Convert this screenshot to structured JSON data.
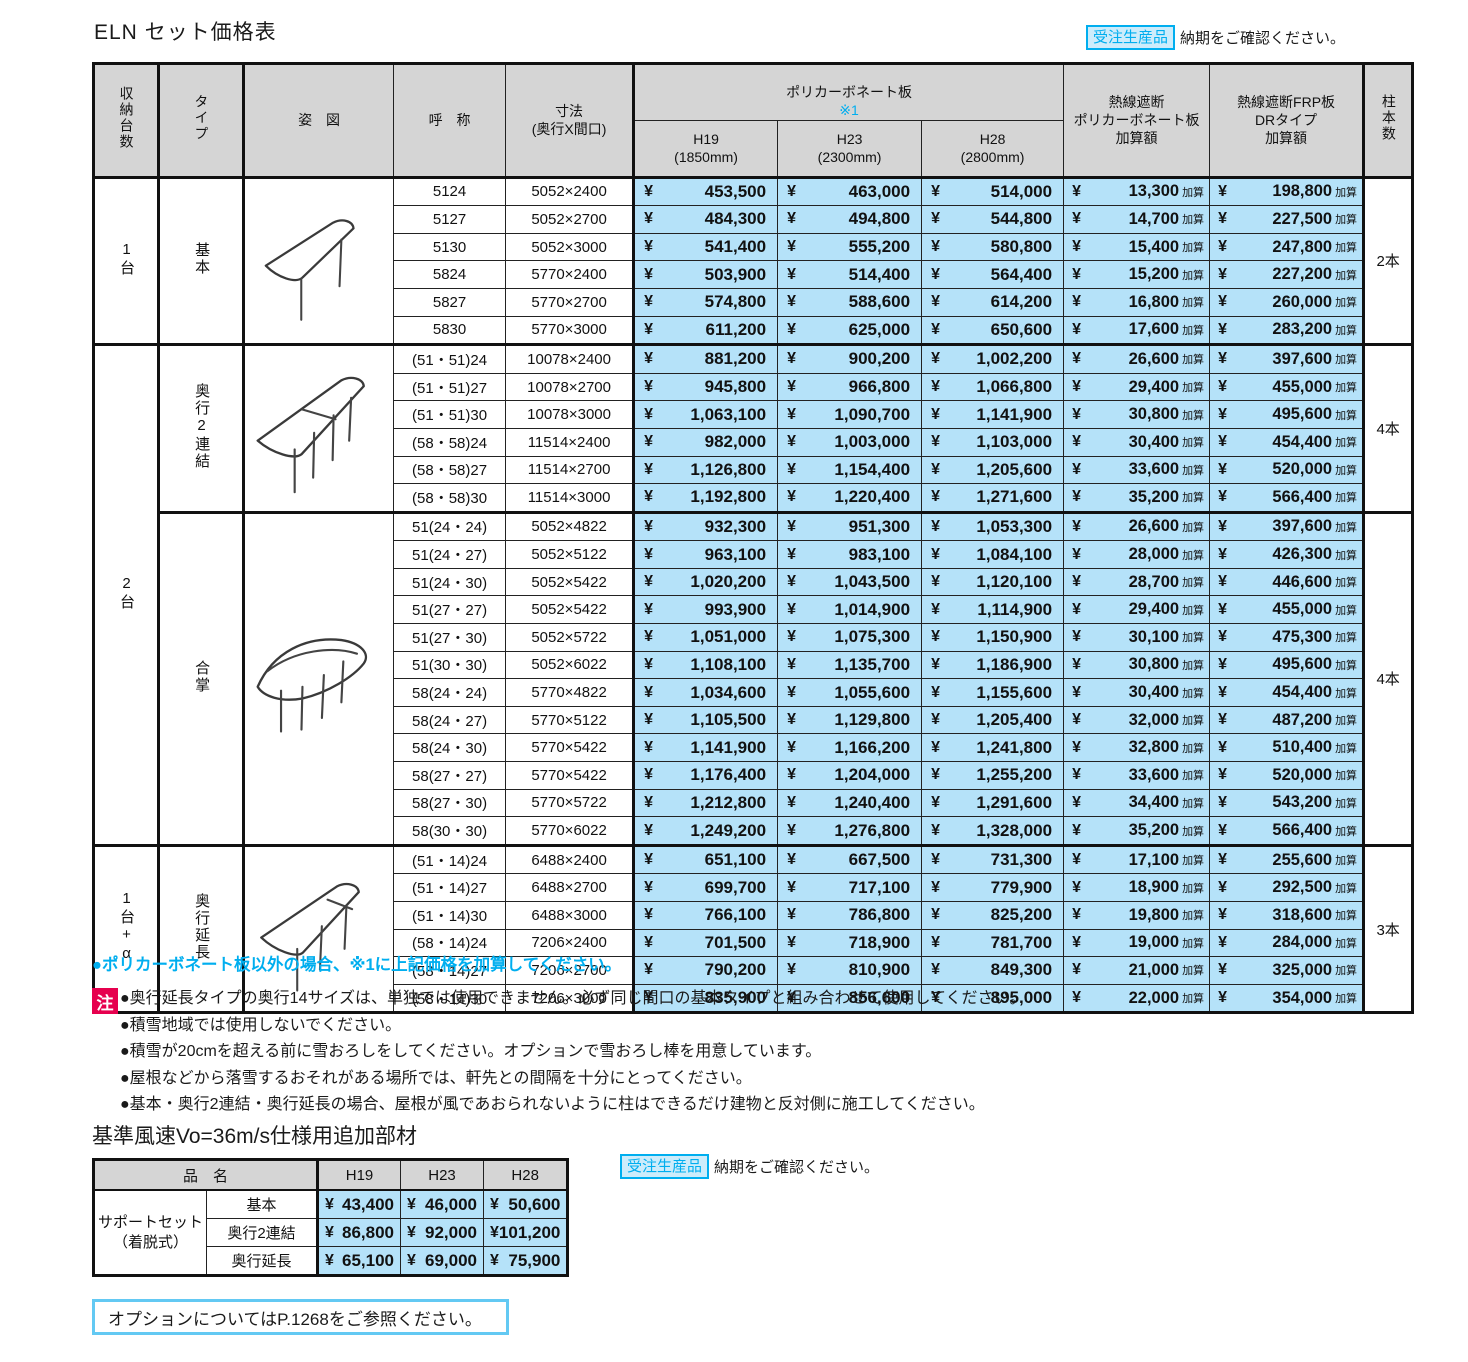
{
  "page": {
    "title": "ELN セット価格表",
    "order_badge": "受注生産品",
    "order_note": "納期をご確認ください。"
  },
  "main_table": {
    "yen": "¥",
    "kasan_suffix": "加算",
    "headers": {
      "col_units": "収納台数",
      "col_type": "タイプ",
      "col_figure": "姿　図",
      "col_name": "呼　称",
      "col_dims": "寸法\n(奥行X間口)",
      "polycarbonate_group": "ポリカーボネート板",
      "polycarbonate_note": "※1",
      "h19": "H19\n(1850mm)",
      "h23": "H23\n(2300mm)",
      "h28": "H28\n(2800mm)",
      "heat_poly": "熱線遮断\nポリカーボネート板\n加算額",
      "heat_frp": "熱線遮断FRP板\nDRタイプ\n加算額",
      "col_posts": "柱本数"
    },
    "groups": [
      {
        "units": "1台",
        "type": "基本",
        "posts": "2本",
        "figure": "carport-basic",
        "rows": [
          {
            "name": "5124",
            "dims": "5052×2400",
            "h19": "453,500",
            "h23": "463,000",
            "h28": "514,000",
            "heat_poly": "13,300",
            "heat_frp": "198,800"
          },
          {
            "name": "5127",
            "dims": "5052×2700",
            "h19": "484,300",
            "h23": "494,800",
            "h28": "544,800",
            "heat_poly": "14,700",
            "heat_frp": "227,500"
          },
          {
            "name": "5130",
            "dims": "5052×3000",
            "h19": "541,400",
            "h23": "555,200",
            "h28": "580,800",
            "heat_poly": "15,400",
            "heat_frp": "247,800"
          },
          {
            "name": "5824",
            "dims": "5770×2400",
            "h19": "503,900",
            "h23": "514,400",
            "h28": "564,400",
            "heat_poly": "15,200",
            "heat_frp": "227,200"
          },
          {
            "name": "5827",
            "dims": "5770×2700",
            "h19": "574,800",
            "h23": "588,600",
            "h28": "614,200",
            "heat_poly": "16,800",
            "heat_frp": "260,000"
          },
          {
            "name": "5830",
            "dims": "5770×3000",
            "h19": "611,200",
            "h23": "625,000",
            "h28": "650,600",
            "heat_poly": "17,600",
            "heat_frp": "283,200"
          }
        ]
      },
      {
        "units": "2台",
        "type": "奥行2連結",
        "posts": "4本",
        "figure": "carport-double-depth",
        "rows": [
          {
            "name": "(51・51)24",
            "dims": "10078×2400",
            "h19": "881,200",
            "h23": "900,200",
            "h28": "1,002,200",
            "heat_poly": "26,600",
            "heat_frp": "397,600"
          },
          {
            "name": "(51・51)27",
            "dims": "10078×2700",
            "h19": "945,800",
            "h23": "966,800",
            "h28": "1,066,800",
            "heat_poly": "29,400",
            "heat_frp": "455,000"
          },
          {
            "name": "(51・51)30",
            "dims": "10078×3000",
            "h19": "1,063,100",
            "h23": "1,090,700",
            "h28": "1,141,900",
            "heat_poly": "30,800",
            "heat_frp": "495,600"
          },
          {
            "name": "(58・58)24",
            "dims": "11514×2400",
            "h19": "982,000",
            "h23": "1,003,000",
            "h28": "1,103,000",
            "heat_poly": "30,400",
            "heat_frp": "454,400"
          },
          {
            "name": "(58・58)27",
            "dims": "11514×2700",
            "h19": "1,126,800",
            "h23": "1,154,400",
            "h28": "1,205,600",
            "heat_poly": "33,600",
            "heat_frp": "520,000"
          },
          {
            "name": "(58・58)30",
            "dims": "11514×3000",
            "h19": "1,192,800",
            "h23": "1,220,400",
            "h28": "1,271,600",
            "heat_poly": "35,200",
            "heat_frp": "566,400"
          }
        ]
      },
      {
        "units": null,
        "type": "合掌",
        "posts": "4本",
        "figure": "carport-gassho",
        "rows": [
          {
            "name": "51(24・24)",
            "dims": "5052×4822",
            "h19": "932,300",
            "h23": "951,300",
            "h28": "1,053,300",
            "heat_poly": "26,600",
            "heat_frp": "397,600"
          },
          {
            "name": "51(24・27)",
            "dims": "5052×5122",
            "h19": "963,100",
            "h23": "983,100",
            "h28": "1,084,100",
            "heat_poly": "28,000",
            "heat_frp": "426,300"
          },
          {
            "name": "51(24・30)",
            "dims": "5052×5422",
            "h19": "1,020,200",
            "h23": "1,043,500",
            "h28": "1,120,100",
            "heat_poly": "28,700",
            "heat_frp": "446,600"
          },
          {
            "name": "51(27・27)",
            "dims": "5052×5422",
            "h19": "993,900",
            "h23": "1,014,900",
            "h28": "1,114,900",
            "heat_poly": "29,400",
            "heat_frp": "455,000"
          },
          {
            "name": "51(27・30)",
            "dims": "5052×5722",
            "h19": "1,051,000",
            "h23": "1,075,300",
            "h28": "1,150,900",
            "heat_poly": "30,100",
            "heat_frp": "475,300"
          },
          {
            "name": "51(30・30)",
            "dims": "5052×6022",
            "h19": "1,108,100",
            "h23": "1,135,700",
            "h28": "1,186,900",
            "heat_poly": "30,800",
            "heat_frp": "495,600"
          },
          {
            "name": "58(24・24)",
            "dims": "5770×4822",
            "h19": "1,034,600",
            "h23": "1,055,600",
            "h28": "1,155,600",
            "heat_poly": "30,400",
            "heat_frp": "454,400"
          },
          {
            "name": "58(24・27)",
            "dims": "5770×5122",
            "h19": "1,105,500",
            "h23": "1,129,800",
            "h28": "1,205,400",
            "heat_poly": "32,000",
            "heat_frp": "487,200"
          },
          {
            "name": "58(24・30)",
            "dims": "5770×5422",
            "h19": "1,141,900",
            "h23": "1,166,200",
            "h28": "1,241,800",
            "heat_poly": "32,800",
            "heat_frp": "510,400"
          },
          {
            "name": "58(27・27)",
            "dims": "5770×5422",
            "h19": "1,176,400",
            "h23": "1,204,000",
            "h28": "1,255,200",
            "heat_poly": "33,600",
            "heat_frp": "520,000"
          },
          {
            "name": "58(27・30)",
            "dims": "5770×5722",
            "h19": "1,212,800",
            "h23": "1,240,400",
            "h28": "1,291,600",
            "heat_poly": "34,400",
            "heat_frp": "543,200"
          },
          {
            "name": "58(30・30)",
            "dims": "5770×6022",
            "h19": "1,249,200",
            "h23": "1,276,800",
            "h28": "1,328,000",
            "heat_poly": "35,200",
            "heat_frp": "566,400"
          }
        ]
      },
      {
        "units": "1台+α",
        "type": "奥行延長",
        "posts": "3本",
        "figure": "carport-depth-extension",
        "rows": [
          {
            "name": "(51・14)24",
            "dims": "6488×2400",
            "h19": "651,100",
            "h23": "667,500",
            "h28": "731,300",
            "heat_poly": "17,100",
            "heat_frp": "255,600"
          },
          {
            "name": "(51・14)27",
            "dims": "6488×2700",
            "h19": "699,700",
            "h23": "717,100",
            "h28": "779,900",
            "heat_poly": "18,900",
            "heat_frp": "292,500"
          },
          {
            "name": "(51・14)30",
            "dims": "6488×3000",
            "h19": "766,100",
            "h23": "786,800",
            "h28": "825,200",
            "heat_poly": "19,800",
            "heat_frp": "318,600"
          },
          {
            "name": "(58・14)24",
            "dims": "7206×2400",
            "h19": "701,500",
            "h23": "718,900",
            "h28": "781,700",
            "heat_poly": "19,000",
            "heat_frp": "284,000"
          },
          {
            "name": "(58・14)27",
            "dims": "7206×2700",
            "h19": "790,200",
            "h23": "810,900",
            "h28": "849,300",
            "heat_poly": "21,000",
            "heat_frp": "325,000"
          },
          {
            "name": "(58・14)30",
            "dims": "7206×3000",
            "h19": "835,900",
            "h23": "856,600",
            "h28": "895,000",
            "heat_poly": "22,000",
            "heat_frp": "354,000"
          }
        ]
      }
    ]
  },
  "notes": {
    "poly_note": "●ポリカーボネート板以外の場合、※1に上記価格を加算してください。",
    "caution_label": "注",
    "items": [
      "●奥行延長タイプの奥行14サイズは、単独では使用できません。必ず同じ間口の基本タイプと組み合わせて使用してください。",
      "●積雪地域では使用しないでください。",
      "●積雪が20cmを超える前に雪おろしをしてください。オプションで雪おろし棒を用意しています。",
      "●屋根などから落雪するおそれがある場所では、軒先との間隔を十分にとってください。",
      "●基本・奥行2連結・奥行延長の場合、屋根が風であおられないように柱はできるだけ建物と反対側に施工してください。"
    ]
  },
  "wind_section": {
    "title": "基準風速Vo=36m/s仕様用追加部材",
    "order_badge": "受注生産品",
    "order_note": "納期をご確認ください。",
    "table": {
      "name_header": "品　名",
      "cols": [
        "H19",
        "H23",
        "H28"
      ],
      "group_label": "サポートセット\n（着脱式）",
      "rows": [
        {
          "label": "基本",
          "values": [
            "43,400",
            "46,000",
            "50,600"
          ]
        },
        {
          "label": "奥行2連結",
          "values": [
            "86,800",
            "92,000",
            "101,200"
          ]
        },
        {
          "label": "奥行延長",
          "values": [
            "65,100",
            "69,000",
            "75,900"
          ]
        }
      ]
    }
  },
  "footer": {
    "option_note": "オプションについてはP.1268をご参照ください。"
  },
  "colors": {
    "cell_blue": "#b5e2f9",
    "header_gray": "#d5d5d5",
    "accent_cyan": "#00aeef",
    "caution_red": "#e6004e"
  }
}
